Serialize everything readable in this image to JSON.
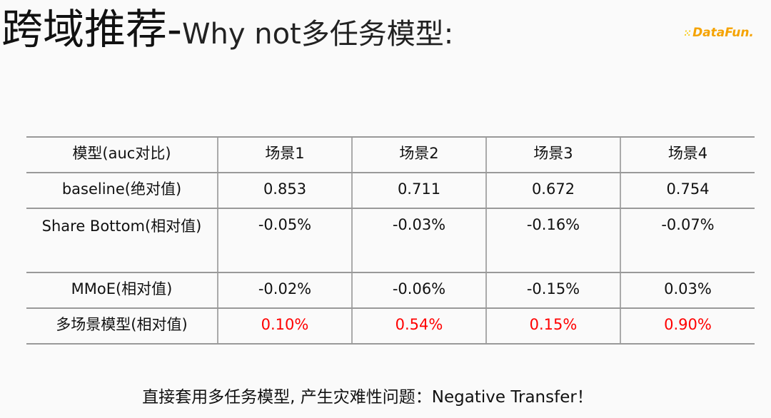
{
  "title": {
    "main": "跨域推荐-",
    "sub": "Why not多任务模型:"
  },
  "logo": {
    "text": "DataFun.",
    "brand_color": "#f5a300"
  },
  "table": {
    "headers": [
      "模型(auc对比)",
      "场景1",
      "场景2",
      "场景3",
      "场景4"
    ],
    "rows": [
      {
        "label": "baseline(绝对值)",
        "values": [
          "0.853",
          "0.711",
          "0.672",
          "0.754"
        ],
        "highlight": false
      },
      {
        "label": "Share Bottom(相对值)",
        "values": [
          "-0.05%",
          "-0.03%",
          "-0.16%",
          "-0.07%"
        ],
        "highlight": false
      },
      {
        "label": "MMoE(相对值)",
        "values": [
          "-0.02%",
          "-0.06%",
          "-0.15%",
          "0.03%"
        ],
        "highlight": false
      },
      {
        "label": "多场景模型(相对值)",
        "values": [
          "0.10%",
          "0.54%",
          "0.15%",
          "0.90%"
        ],
        "highlight": true
      }
    ],
    "highlight_color": "#ff0000"
  },
  "footer": "直接套用多任务模型, 产生灾难性问题：Negative  Transfer！"
}
